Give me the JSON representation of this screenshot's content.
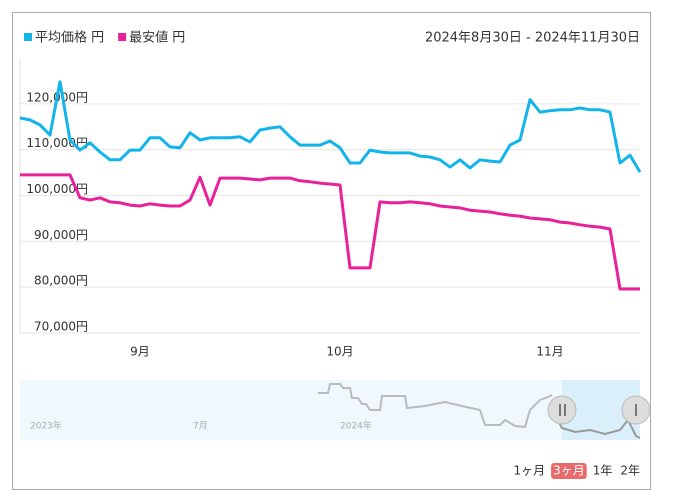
{
  "chart_data": {
    "type": "line",
    "subtitle": "2024年8月30日 - 2024年11月30日",
    "categories": [
      null,
      null,
      null,
      null,
      null,
      null,
      null,
      null,
      null,
      null,
      null,
      null,
      "9月",
      null,
      null,
      null,
      null,
      null,
      null,
      null,
      null,
      null,
      null,
      null,
      null,
      null,
      null,
      null,
      null,
      null,
      null,
      null,
      "10月",
      null,
      null,
      null,
      null,
      null,
      null,
      null,
      null,
      null,
      null,
      null,
      null,
      null,
      null,
      null,
      null,
      null,
      null,
      null,
      null,
      "11月",
      null,
      null,
      null,
      null,
      null,
      null,
      null,
      null,
      null
    ],
    "series": [
      {
        "name": "平均価格 円",
        "color": "#12b4ec",
        "values": [
          116900,
          116500,
          115400,
          113200,
          124800,
          112100,
          109900,
          111500,
          109500,
          107800,
          107800,
          109900,
          109900,
          112600,
          112600,
          110600,
          110400,
          113700,
          112100,
          112600,
          112600,
          112600,
          112800,
          111700,
          114300,
          114700,
          115000,
          112800,
          111000,
          111000,
          111000,
          111900,
          110400,
          107100,
          107100,
          109900,
          109500,
          109300,
          109300,
          109300,
          108600,
          108400,
          107800,
          106200,
          107800,
          106000,
          107800,
          107500,
          107300,
          111000,
          112100,
          120900,
          118200,
          118500,
          118700,
          118700,
          119100,
          118700,
          118700,
          118200,
          107100,
          108800,
          105100
        ]
      },
      {
        "name": "最安値 円",
        "color": "#e8219a",
        "values": [
          104500,
          104500,
          104500,
          104500,
          104500,
          104500,
          99500,
          99000,
          99500,
          98600,
          98400,
          97900,
          97700,
          98200,
          97900,
          97700,
          97700,
          99000,
          104000,
          97900,
          103800,
          103800,
          103800,
          103600,
          103400,
          103800,
          103800,
          103800,
          103200,
          103000,
          102700,
          102500,
          102300,
          84200,
          84200,
          84200,
          98600,
          98400,
          98400,
          98600,
          98400,
          98200,
          97700,
          97500,
          97300,
          96800,
          96600,
          96400,
          96000,
          95700,
          95500,
          95100,
          94900,
          94700,
          94200,
          94000,
          93600,
          93300,
          93100,
          92700,
          79600,
          79600,
          79600
        ]
      }
    ],
    "ylim": [
      70000,
      130000
    ],
    "yticks": [
      {
        "value": 70000,
        "label": "70,000円"
      },
      {
        "value": 80000,
        "label": "80,000円"
      },
      {
        "value": 90000,
        "label": "90,000円"
      },
      {
        "value": 100000,
        "label": "100,000円"
      },
      {
        "value": 110000,
        "label": "110,000円"
      },
      {
        "value": 120000,
        "label": "120,000円"
      }
    ],
    "grid": true,
    "navigator_labels": [
      "2023年",
      "7月",
      "2024年"
    ],
    "range_buttons": [
      "1ヶ月",
      "3ヶ月",
      "1年",
      "2年"
    ],
    "active_button": 1
  }
}
